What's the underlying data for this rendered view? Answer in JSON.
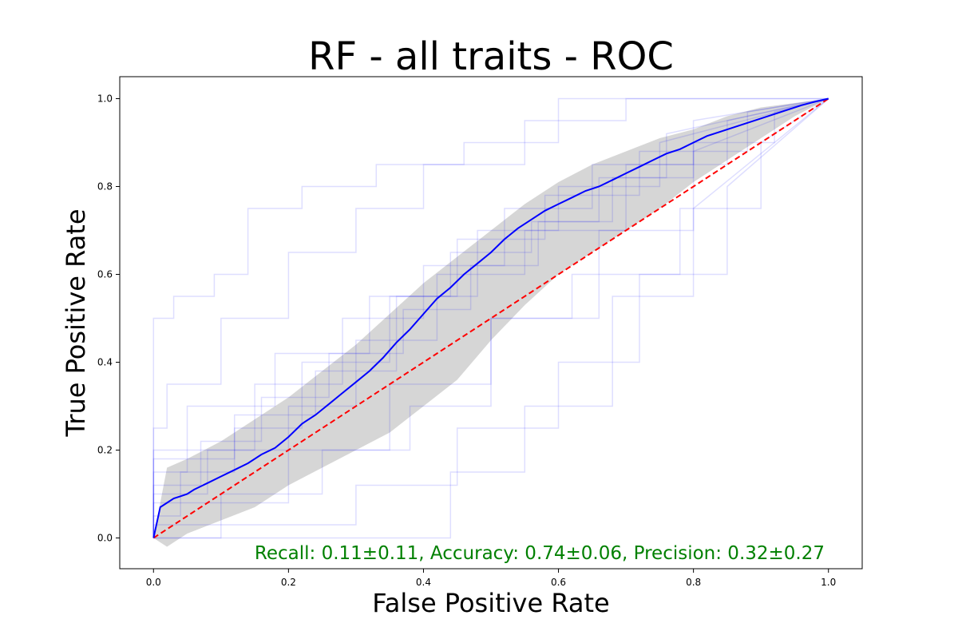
{
  "chart_data": {
    "type": "line",
    "title": "RF - all traits  - ROC",
    "xlabel": "False Positive Rate",
    "ylabel": "True Positive Rate",
    "xlim": [
      -0.05,
      1.05
    ],
    "ylim": [
      -0.07,
      1.05
    ],
    "xticks": [
      "0.0",
      "0.2",
      "0.4",
      "0.6",
      "0.8",
      "1.0"
    ],
    "yticks": [
      "0.0",
      "0.2",
      "0.4",
      "0.6",
      "0.8",
      "1.0"
    ],
    "grid": false,
    "annotation": "Recall: 0.11±0.11, Accuracy: 0.74±0.06, Precision: 0.32±0.27",
    "colors": {
      "mean_line": "#0000ff",
      "fold_lines": "#0000ff",
      "band": "#c0c0c0",
      "chance": "#ff0000",
      "annotation": "#008000"
    },
    "series": [
      {
        "kind": "mean",
        "x": [
          0,
          0.01,
          0.02,
          0.03,
          0.04,
          0.05,
          0.06,
          0.08,
          0.1,
          0.12,
          0.14,
          0.16,
          0.18,
          0.2,
          0.22,
          0.24,
          0.26,
          0.28,
          0.3,
          0.32,
          0.34,
          0.36,
          0.38,
          0.4,
          0.42,
          0.44,
          0.46,
          0.48,
          0.5,
          0.52,
          0.54,
          0.56,
          0.58,
          0.6,
          0.62,
          0.64,
          0.66,
          0.68,
          0.7,
          0.72,
          0.74,
          0.76,
          0.78,
          0.8,
          0.82,
          0.84,
          0.86,
          0.88,
          0.9,
          0.92,
          0.94,
          0.96,
          0.98,
          1.0
        ],
        "y": [
          0,
          0.07,
          0.08,
          0.09,
          0.095,
          0.1,
          0.11,
          0.125,
          0.14,
          0.155,
          0.17,
          0.19,
          0.205,
          0.23,
          0.26,
          0.28,
          0.305,
          0.33,
          0.355,
          0.38,
          0.41,
          0.445,
          0.475,
          0.51,
          0.545,
          0.57,
          0.6,
          0.625,
          0.65,
          0.68,
          0.705,
          0.725,
          0.745,
          0.76,
          0.775,
          0.79,
          0.8,
          0.815,
          0.83,
          0.845,
          0.86,
          0.875,
          0.885,
          0.9,
          0.915,
          0.925,
          0.935,
          0.945,
          0.955,
          0.965,
          0.975,
          0.985,
          0.993,
          1.0
        ]
      },
      {
        "kind": "band_upper",
        "x": [
          0,
          0.02,
          0.05,
          0.1,
          0.15,
          0.2,
          0.25,
          0.3,
          0.35,
          0.4,
          0.45,
          0.5,
          0.55,
          0.6,
          0.65,
          0.7,
          0.75,
          0.8,
          0.85,
          0.9,
          0.95,
          1.0
        ],
        "y": [
          0,
          0.16,
          0.18,
          0.22,
          0.27,
          0.32,
          0.38,
          0.44,
          0.51,
          0.58,
          0.64,
          0.7,
          0.76,
          0.81,
          0.85,
          0.88,
          0.91,
          0.93,
          0.96,
          0.98,
          0.99,
          1.0
        ]
      },
      {
        "kind": "band_lower",
        "x": [
          0,
          0.02,
          0.05,
          0.1,
          0.15,
          0.2,
          0.25,
          0.3,
          0.35,
          0.4,
          0.45,
          0.5,
          0.55,
          0.6,
          0.65,
          0.7,
          0.75,
          0.8,
          0.85,
          0.9,
          0.95,
          1.0
        ],
        "y": [
          0,
          -0.02,
          0.01,
          0.04,
          0.07,
          0.12,
          0.16,
          0.2,
          0.24,
          0.3,
          0.36,
          0.45,
          0.53,
          0.6,
          0.65,
          0.7,
          0.75,
          0.81,
          0.86,
          0.91,
          0.96,
          1.0
        ]
      },
      {
        "kind": "chance",
        "x": [
          0,
          1
        ],
        "y": [
          0,
          1
        ]
      }
    ],
    "folds": [
      {
        "x": [
          0,
          0,
          0.08,
          0.08,
          0.2,
          0.2,
          0.3,
          0.3,
          0.42,
          0.42,
          0.55,
          0.55,
          0.7,
          0.7,
          0.85,
          0.85,
          1
        ],
        "y": [
          0,
          0.1,
          0.1,
          0.2,
          0.2,
          0.3,
          0.3,
          0.45,
          0.45,
          0.6,
          0.6,
          0.7,
          0.7,
          0.85,
          0.85,
          0.95,
          1
        ]
      },
      {
        "x": [
          0,
          0,
          0.04,
          0.04,
          0.12,
          0.12,
          0.22,
          0.22,
          0.35,
          0.35,
          0.48,
          0.48,
          0.6,
          0.6,
          0.75,
          0.75,
          1
        ],
        "y": [
          0,
          0.05,
          0.05,
          0.15,
          0.15,
          0.25,
          0.25,
          0.4,
          0.4,
          0.55,
          0.55,
          0.7,
          0.7,
          0.8,
          0.8,
          0.9,
          1
        ]
      },
      {
        "x": [
          0,
          0,
          0.15,
          0.15,
          0.28,
          0.28,
          0.4,
          0.4,
          0.52,
          0.52,
          0.65,
          0.65,
          0.8,
          0.8,
          1
        ],
        "y": [
          0,
          0.2,
          0.2,
          0.35,
          0.35,
          0.5,
          0.5,
          0.62,
          0.62,
          0.75,
          0.75,
          0.85,
          0.85,
          0.95,
          1
        ]
      },
      {
        "x": [
          0,
          0,
          0.1,
          0.1,
          0.25,
          0.25,
          0.38,
          0.38,
          0.5,
          0.5,
          0.62,
          0.62,
          0.78,
          0.78,
          0.9,
          0.9,
          1
        ],
        "y": [
          0,
          0.0,
          0.0,
          0.1,
          0.1,
          0.2,
          0.2,
          0.3,
          0.3,
          0.5,
          0.5,
          0.6,
          0.6,
          0.75,
          0.75,
          0.9,
          1
        ]
      },
      {
        "x": [
          0,
          0,
          0.05,
          0.05,
          0.18,
          0.18,
          0.32,
          0.32,
          0.45,
          0.45,
          0.58,
          0.58,
          0.72,
          0.72,
          0.88,
          0.88,
          1
        ],
        "y": [
          0,
          0.15,
          0.15,
          0.3,
          0.3,
          0.42,
          0.42,
          0.55,
          0.55,
          0.68,
          0.68,
          0.78,
          0.78,
          0.88,
          0.88,
          0.97,
          1
        ]
      },
      {
        "x": [
          0,
          0,
          0.2,
          0.2,
          0.35,
          0.35,
          0.5,
          0.5,
          0.66,
          0.66,
          0.8,
          0.8,
          1
        ],
        "y": [
          0,
          0.08,
          0.08,
          0.2,
          0.2,
          0.35,
          0.35,
          0.5,
          0.5,
          0.7,
          0.7,
          0.88,
          1
        ]
      },
      {
        "x": [
          0,
          0,
          0.02,
          0.02,
          0.1,
          0.1,
          0.2,
          0.2,
          0.3,
          0.3,
          0.4,
          0.4,
          0.55,
          0.55,
          0.7,
          0.7,
          0.82,
          0.82,
          1
        ],
        "y": [
          0,
          0.25,
          0.25,
          0.35,
          0.35,
          0.5,
          0.5,
          0.65,
          0.65,
          0.75,
          0.75,
          0.85,
          0.85,
          0.95,
          0.95,
          1,
          1,
          1,
          1
        ]
      },
      {
        "x": [
          0,
          0,
          0.3,
          0.3,
          0.45,
          0.45,
          0.6,
          0.6,
          0.72,
          0.72,
          0.85,
          0.85,
          1
        ],
        "y": [
          0,
          0.03,
          0.03,
          0.12,
          0.12,
          0.25,
          0.25,
          0.4,
          0.4,
          0.6,
          0.6,
          0.8,
          1
        ]
      },
      {
        "x": [
          0,
          0,
          0.07,
          0.07,
          0.16,
          0.16,
          0.26,
          0.26,
          0.37,
          0.37,
          0.47,
          0.47,
          0.57,
          0.57,
          0.68,
          0.68,
          0.8,
          0.8,
          0.92,
          0.92,
          1
        ],
        "y": [
          0,
          0.12,
          0.12,
          0.22,
          0.22,
          0.32,
          0.32,
          0.42,
          0.42,
          0.52,
          0.52,
          0.62,
          0.62,
          0.72,
          0.72,
          0.82,
          0.82,
          0.9,
          0.9,
          0.97,
          1
        ]
      },
      {
        "x": [
          0,
          0,
          0.12,
          0.12,
          0.24,
          0.24,
          0.36,
          0.36,
          0.44,
          0.44,
          0.56,
          0.56,
          0.66,
          0.66,
          0.76,
          0.76,
          1
        ],
        "y": [
          0,
          0.18,
          0.18,
          0.28,
          0.28,
          0.38,
          0.38,
          0.55,
          0.55,
          0.65,
          0.65,
          0.72,
          0.72,
          0.82,
          0.82,
          0.92,
          1
        ]
      },
      {
        "x": [
          0,
          0,
          0.44,
          0.44,
          0.55,
          0.55,
          0.68,
          0.68,
          0.8,
          0.8,
          1
        ],
        "y": [
          0,
          0.0,
          0.0,
          0.15,
          0.15,
          0.3,
          0.3,
          0.55,
          0.55,
          0.75,
          1
        ]
      },
      {
        "x": [
          0,
          0,
          0.03,
          0.03,
          0.09,
          0.09,
          0.14,
          0.14,
          0.22,
          0.22,
          0.33,
          0.33,
          0.46,
          0.46,
          0.6,
          0.6,
          0.75,
          0.75,
          1
        ],
        "y": [
          0,
          0.5,
          0.5,
          0.55,
          0.55,
          0.6,
          0.6,
          0.75,
          0.75,
          0.8,
          0.8,
          0.85,
          0.85,
          0.9,
          0.9,
          1,
          1,
          1,
          1
        ]
      }
    ]
  }
}
